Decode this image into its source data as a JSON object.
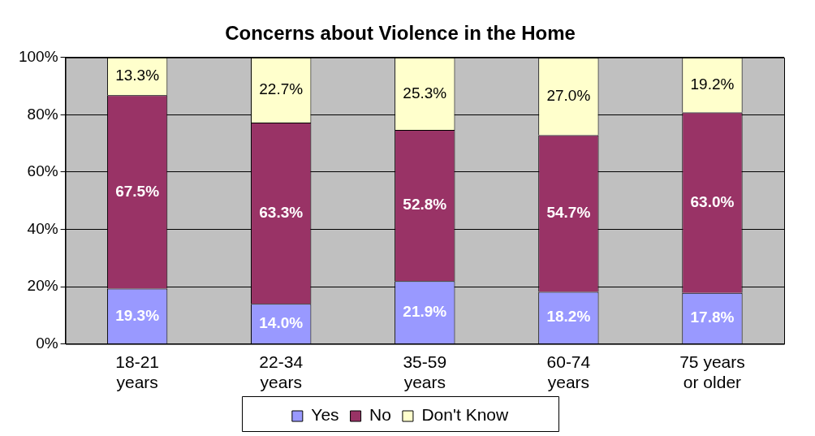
{
  "chart_data": {
    "type": "bar",
    "title": "Concerns about Violence in the Home",
    "categories": [
      "18-21 years",
      "22-34 years",
      "35-59 years",
      "60-74 years",
      "75 years or older"
    ],
    "series": [
      {
        "name": "Yes",
        "color": "#9999ff",
        "values": [
          19.3,
          14.0,
          21.9,
          18.2,
          17.8
        ],
        "value_labels": [
          "19.3%",
          "14.0%",
          "21.9%",
          "18.2%",
          "17.8%"
        ]
      },
      {
        "name": "No",
        "color": "#993366",
        "values": [
          67.5,
          63.3,
          52.8,
          54.7,
          63.0
        ],
        "value_labels": [
          "67.5%",
          "63.3%",
          "52.8%",
          "54.7%",
          "63.0%"
        ]
      },
      {
        "name": "Don't Know",
        "color": "#ffffcc",
        "values": [
          13.3,
          22.7,
          25.3,
          27.0,
          19.2
        ],
        "value_labels": [
          "13.3%",
          "22.7%",
          "25.3%",
          "27.0%",
          "19.2%"
        ]
      }
    ],
    "stacked": true,
    "ylim": [
      0,
      100
    ],
    "yticks": [
      {
        "value": 0,
        "label": "0%"
      },
      {
        "value": 20,
        "label": "20%"
      },
      {
        "value": 40,
        "label": "40%"
      },
      {
        "value": 60,
        "label": "60%"
      },
      {
        "value": 80,
        "label": "80%"
      },
      {
        "value": 100,
        "label": "100%"
      }
    ],
    "grid": "y",
    "legend": "bottom"
  }
}
